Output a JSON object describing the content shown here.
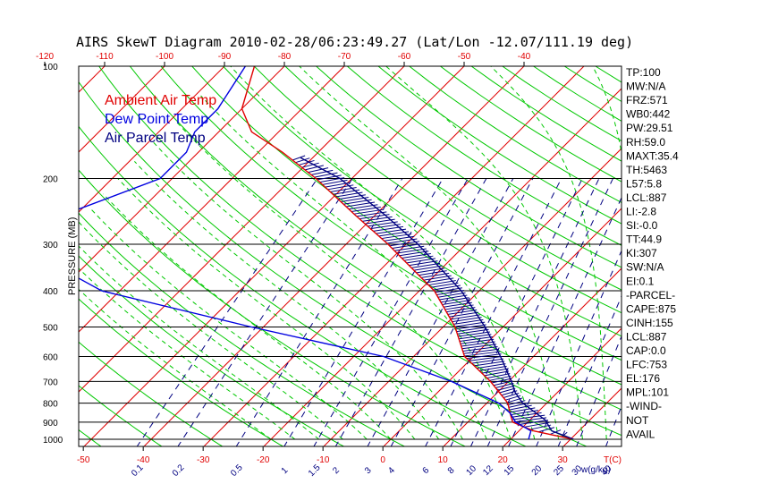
{
  "chart_data": {
    "type": "line",
    "title": "AIRS SkewT Diagram 2010-02-28/06:23:49.27 (Lat/Lon -12.07/111.19 deg)",
    "ylabel": "PRESSURE (MB)",
    "xlabel_temp": "T(C)",
    "xlabel_mixing": "w(g/kg)",
    "pressure_ticks": [
      "100",
      "200",
      "300",
      "400",
      "500",
      "600",
      "700",
      "800",
      "900",
      "1000"
    ],
    "pressure_range": [
      100,
      1050
    ],
    "temp_range": [
      -50,
      35
    ],
    "bottom_temp_ticks": [
      -50,
      -40,
      -30,
      -20,
      -10,
      0,
      10,
      20,
      30
    ],
    "top_temp_ticks": [
      -120,
      -110,
      -100,
      -90,
      -80,
      -70,
      -60,
      -50,
      -40
    ],
    "mixing_ratio_labels": [
      "0.1",
      "0.2",
      "0.5",
      "1",
      "1.5",
      "2",
      "3",
      "4",
      "6",
      "8",
      "10",
      "12",
      "15",
      "20",
      "25",
      "30",
      "40"
    ],
    "legend": [
      {
        "label": "Ambient Air Temp",
        "color": "#e00000"
      },
      {
        "label": "Dew Point Temp",
        "color": "#0000e0"
      },
      {
        "label": "Air Parcel Temp",
        "color": "#000080"
      }
    ],
    "series": [
      {
        "name": "Ambient Air Temp",
        "color": "#e00000",
        "points": [
          [
            1000,
            30.5
          ],
          [
            975,
            26.5
          ],
          [
            950,
            22.5
          ],
          [
            925,
            20.0
          ],
          [
            900,
            17.5
          ],
          [
            850,
            15.5
          ],
          [
            800,
            13.5
          ],
          [
            700,
            7.0
          ],
          [
            600,
            -1.5
          ],
          [
            500,
            -8.0
          ],
          [
            400,
            -17.5
          ],
          [
            300,
            -33.0
          ],
          [
            250,
            -43.5
          ],
          [
            200,
            -56.0
          ],
          [
            170,
            -66.0
          ],
          [
            150,
            -74.5
          ],
          [
            130,
            -80.0
          ],
          [
            100,
            -85.0
          ]
        ]
      },
      {
        "name": "Dew Point Temp",
        "color": "#0000e0",
        "points": [
          [
            1000,
            23.0
          ],
          [
            950,
            22.0
          ],
          [
            900,
            18.0
          ],
          [
            850,
            15.5
          ],
          [
            800,
            12.0
          ],
          [
            700,
            0.5
          ],
          [
            600,
            -15.0
          ],
          [
            500,
            -42.0
          ],
          [
            400,
            -73.0
          ],
          [
            300,
            -95.0
          ],
          [
            250,
            -92.0
          ],
          [
            200,
            -82.0
          ],
          [
            170,
            -82.0
          ],
          [
            150,
            -84.0
          ],
          [
            130,
            -84.0
          ],
          [
            100,
            -86.5
          ]
        ]
      },
      {
        "name": "Air Parcel Temp",
        "color": "#000080",
        "points": [
          [
            1000,
            30.5
          ],
          [
            950,
            25.5
          ],
          [
            887,
            22.5
          ],
          [
            800,
            16.0
          ],
          [
            750,
            13.0
          ],
          [
            700,
            10.5
          ],
          [
            600,
            4.5
          ],
          [
            500,
            -3.0
          ],
          [
            400,
            -13.0
          ],
          [
            300,
            -28.0
          ],
          [
            250,
            -38.5
          ],
          [
            200,
            -52.0
          ],
          [
            176,
            -62.0
          ]
        ]
      }
    ],
    "indices": [
      "TP:100",
      "MW:N/A",
      "FRZ:571",
      "WB0:442",
      "PW:29.51",
      "RH:59.0",
      "MAXT:35.4",
      "TH:5463",
      "L57:5.8",
      "LCL:887",
      "LI:-2.8",
      "SI:-0.0",
      "TT:44.9",
      "KI:307",
      "SW:N/A",
      "EI:0.1",
      "-PARCEL-",
      "CAPE:875",
      "CINH:155",
      "LCL:887",
      "CAP:0.0",
      "LFC:753",
      "EL:176",
      "MPL:101",
      "-WIND-",
      "NOT",
      "AVAIL"
    ],
    "colors": {
      "isotherm": "#e00000",
      "dry_adiabat": "#00c800",
      "moist_adiabat": "#00c800",
      "mixing_ratio": "#000080",
      "isobar": "#000000",
      "cape_hatch": "#000080"
    }
  }
}
